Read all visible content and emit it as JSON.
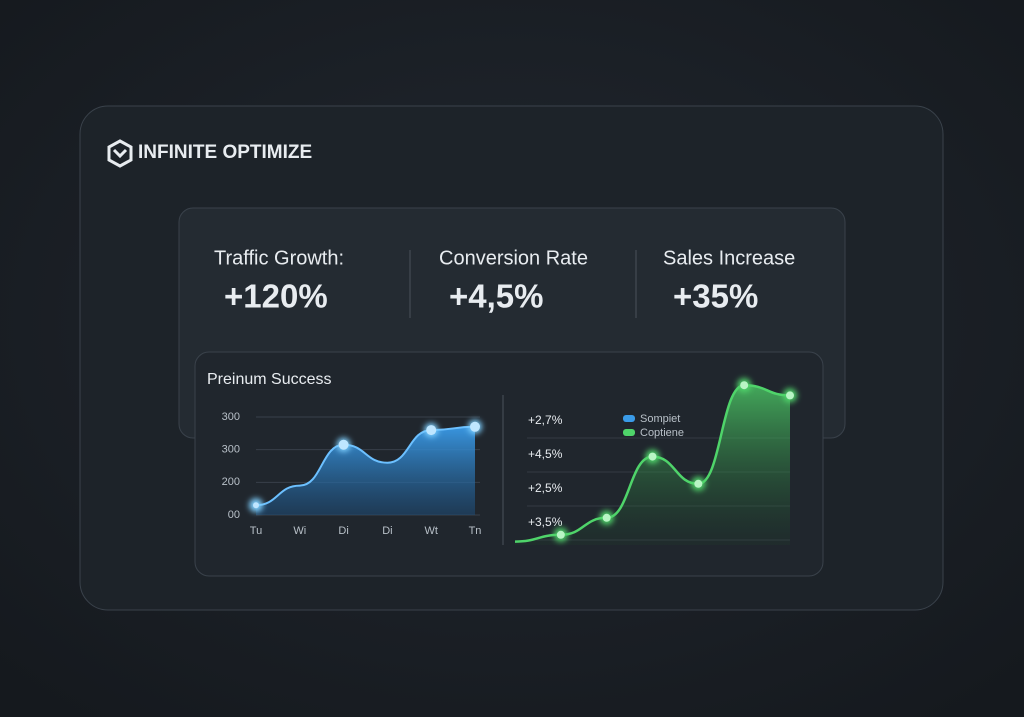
{
  "brand": "INFINITE OPTIMIZE",
  "metrics": [
    {
      "label": "Traffic Growth:",
      "value": "+120%"
    },
    {
      "label": "Conversion Rate",
      "value": "+4,5%"
    },
    {
      "label": "Sales Increase",
      "value": "+35%"
    }
  ],
  "chart_data": [
    {
      "type": "area",
      "title": "Preinum Success",
      "categories": [
        "Tu",
        "Wi",
        "Di",
        "Di",
        "Wt",
        "Tn"
      ],
      "y_labels": [
        "300",
        "300",
        "200",
        "00"
      ],
      "ylim": [
        0,
        3
      ],
      "values": [
        0.3,
        0.9,
        2.15,
        1.6,
        2.6,
        2.7
      ],
      "color": "#3a9be8"
    },
    {
      "type": "line",
      "categories": [
        null,
        null,
        null,
        null,
        null,
        null,
        null
      ],
      "y_labels": [
        "+2,7%",
        "+4,5%",
        "+2,5%",
        "+3,5%"
      ],
      "ylim": [
        0,
        5
      ],
      "values": [
        0.1,
        0.3,
        0.8,
        2.6,
        1.8,
        4.7,
        4.4
      ],
      "color": "#4fd46a",
      "legend": [
        {
          "name": "Sompiet",
          "color": "#3a9be8"
        },
        {
          "name": "Coptiene",
          "color": "#4fd46a"
        }
      ]
    }
  ]
}
